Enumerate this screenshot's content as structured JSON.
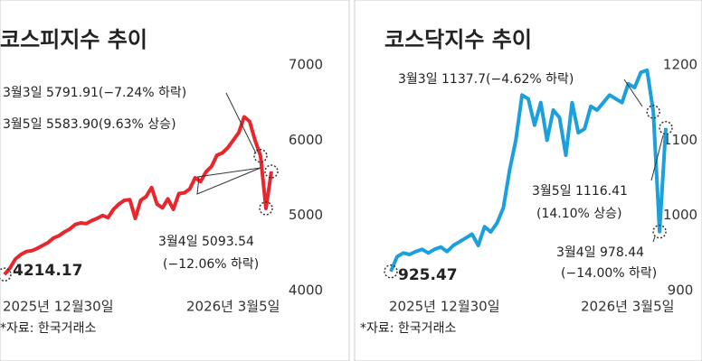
{
  "chart_data": [
    {
      "type": "line",
      "title": "코스피지수 추이",
      "source": "*자료: 한국거래소",
      "categories": [
        "2025년 12월30일",
        null,
        null,
        null,
        null,
        null,
        null,
        null,
        null,
        null,
        null,
        null,
        null,
        null,
        null,
        null,
        null,
        null,
        null,
        null,
        null,
        null,
        null,
        null,
        null,
        null,
        null,
        null,
        null,
        null,
        null,
        null,
        null,
        null,
        null,
        null,
        null,
        null,
        null,
        null,
        null,
        null,
        null,
        null,
        null,
        null,
        null,
        null,
        null,
        "2026년 3월5일"
      ],
      "series": [
        {
          "name": "코스피",
          "color": "#e8262c",
          "values": [
            4214.17,
            4300,
            4420,
            4480,
            4520,
            4530,
            4560,
            4600,
            4640,
            4700,
            4730,
            4780,
            4820,
            4880,
            4900,
            4890,
            4930,
            4960,
            5000,
            4970,
            5080,
            5150,
            5200,
            5210,
            4960,
            5200,
            5250,
            5370,
            5150,
            5100,
            5220,
            5080,
            5290,
            5300,
            5350,
            5500,
            5450,
            5580,
            5650,
            5800,
            5830,
            5900,
            6000,
            6100,
            6310,
            6250,
            6000,
            5791.91,
            5093.54,
            5583.9
          ]
        }
      ],
      "ylim": [
        4000,
        7000
      ],
      "yticks": [
        4000,
        5000,
        6000,
        7000
      ],
      "annotations": [
        "3월3일 5791.91(−7.24% 하락)",
        "3월5일 5583.90(9.63% 상승)",
        "3월4일 5093.54",
        "(−12.06% 하락)",
        "4214.17"
      ]
    },
    {
      "type": "line",
      "title": "코스닥지수 추이",
      "source": "*자료: 한국거래소",
      "categories": [
        "2025년 12월30일",
        null,
        null,
        null,
        null,
        null,
        null,
        null,
        null,
        null,
        null,
        null,
        null,
        null,
        null,
        null,
        null,
        null,
        null,
        null,
        null,
        null,
        null,
        null,
        null,
        null,
        null,
        null,
        null,
        null,
        null,
        null,
        null,
        null,
        null,
        null,
        null,
        null,
        null,
        null,
        null,
        null,
        null,
        null,
        "2026년 3월5일"
      ],
      "series": [
        {
          "name": "코스닥",
          "color": "#1ca0dc",
          "values": [
            925.47,
            945,
            950,
            948,
            952,
            955,
            950,
            955,
            958,
            952,
            960,
            965,
            970,
            975,
            960,
            985,
            978,
            990,
            1010,
            1060,
            1100,
            1160,
            1155,
            1120,
            1150,
            1100,
            1140,
            1130,
            1080,
            1150,
            1110,
            1115,
            1145,
            1140,
            1150,
            1160,
            1155,
            1150,
            1175,
            1170,
            1190,
            1193,
            1137.7,
            978.44,
            1116.41
          ]
        }
      ],
      "ylim": [
        900,
        1200
      ],
      "yticks": [
        900,
        1000,
        1100,
        1200
      ],
      "annotations": [
        "3월3일 1137.7(−4.62% 하락)",
        "3월5일 1116.41",
        "(14.10% 상승)",
        "3월4일 978.44",
        "(−14.00% 하락)",
        "925.47"
      ]
    }
  ]
}
